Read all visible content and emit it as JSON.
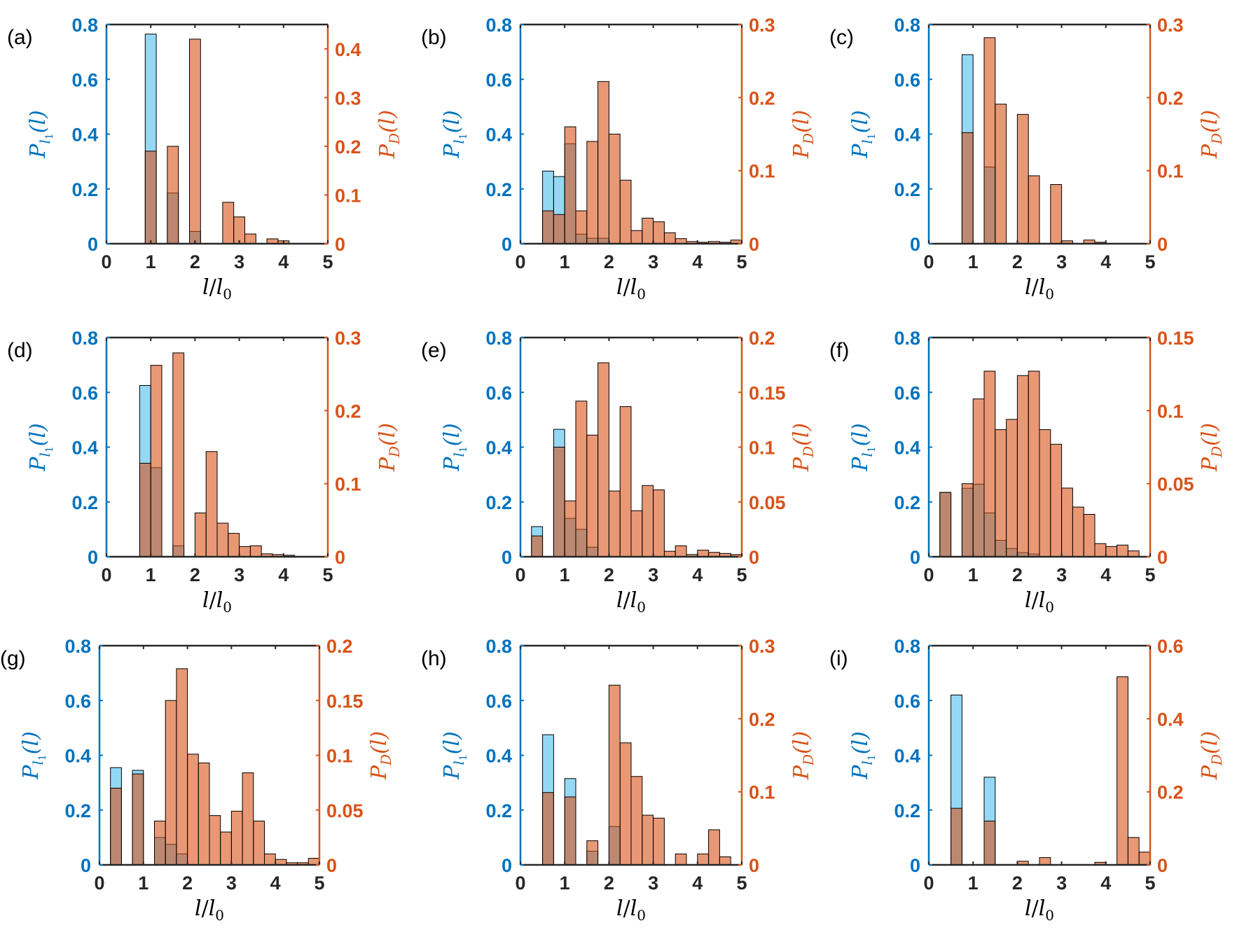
{
  "colors": {
    "left_axis": "#0072BD",
    "right_axis": "#D95319",
    "blue_fill": "#4DBEEE",
    "orange_fill": "#D95319",
    "axis_black": "#262626"
  },
  "common": {
    "xlabel": {
      "base": "l",
      "slash": "/",
      "base2": "l",
      "sub": "0"
    },
    "ylabel_left": {
      "P": "P",
      "sub": "l",
      "subsub": "1",
      "arg": "(l)"
    },
    "ylabel_right": {
      "P": "P",
      "sub": "D",
      "arg": "(l)"
    },
    "xticks": [
      "0",
      "1",
      "2",
      "3",
      "4",
      "5"
    ],
    "left_ticks": [
      "0",
      "0.2",
      "0.4",
      "0.6",
      "0.8"
    ]
  },
  "chart_data": [
    {
      "label": "(a)",
      "type": "bar",
      "xlim": [
        0,
        5
      ],
      "ylim_left": [
        0,
        0.8
      ],
      "ylim_right": [
        0,
        0.45
      ],
      "right_ticks": [
        "0",
        "0.1",
        "0.2",
        "0.3",
        "0.4"
      ],
      "right_values": [
        0,
        0.1,
        0.2,
        0.3,
        0.4
      ],
      "series": [
        {
          "name": "P_l1",
          "axis": "left",
          "bin_width": 0.25,
          "x": [
            1.0,
            1.5,
            2.0
          ],
          "values": [
            0.765,
            0.185,
            0.045
          ]
        },
        {
          "name": "P_D",
          "axis": "right",
          "bin_width": 0.25,
          "x": [
            1.0,
            1.5,
            2.0,
            2.75,
            3.0,
            3.25,
            3.75,
            4.0
          ],
          "values": [
            0.19,
            0.2,
            0.42,
            0.085,
            0.055,
            0.02,
            0.01,
            0.006
          ]
        }
      ]
    },
    {
      "label": "(b)",
      "type": "bar",
      "xlim": [
        0,
        5
      ],
      "ylim_left": [
        0,
        0.8
      ],
      "ylim_right": [
        0,
        0.3
      ],
      "right_ticks": [
        "0",
        "0.1",
        "0.2",
        "0.3"
      ],
      "right_values": [
        0,
        0.1,
        0.2,
        0.3
      ],
      "series": [
        {
          "name": "P_l1",
          "axis": "left",
          "bin_width": 0.25,
          "x": [
            0.625,
            0.875,
            1.125,
            1.375,
            1.625,
            1.875
          ],
          "values": [
            0.265,
            0.245,
            0.365,
            0.035,
            0.02,
            0.02
          ]
        },
        {
          "name": "P_D",
          "axis": "right",
          "bin_width": 0.25,
          "x": [
            0.625,
            0.875,
            1.125,
            1.375,
            1.625,
            1.875,
            2.125,
            2.375,
            2.625,
            2.875,
            3.125,
            3.375,
            3.625,
            3.875,
            4.125,
            4.375,
            4.625,
            4.875
          ],
          "values": [
            0.045,
            0.04,
            0.16,
            0.045,
            0.14,
            0.222,
            0.15,
            0.087,
            0.018,
            0.035,
            0.03,
            0.015,
            0.007,
            0.003,
            0.002,
            0.003,
            0.002,
            0.005
          ]
        }
      ]
    },
    {
      "label": "(c)",
      "type": "bar",
      "xlim": [
        0,
        5
      ],
      "ylim_left": [
        0,
        0.8
      ],
      "ylim_right": [
        0,
        0.3
      ],
      "right_ticks": [
        "0",
        "0.1",
        "0.2",
        "0.3"
      ],
      "right_values": [
        0,
        0.1,
        0.2,
        0.3
      ],
      "series": [
        {
          "name": "P_l1",
          "axis": "left",
          "bin_width": 0.25,
          "x": [
            0.875,
            1.375
          ],
          "values": [
            0.69,
            0.28
          ]
        },
        {
          "name": "P_D",
          "axis": "right",
          "bin_width": 0.25,
          "x": [
            0.875,
            1.375,
            1.625,
            2.125,
            2.375,
            2.875,
            3.125,
            3.625,
            3.875
          ],
          "values": [
            0.152,
            0.282,
            0.191,
            0.177,
            0.093,
            0.081,
            0.004,
            0.005,
            0.002
          ]
        }
      ]
    },
    {
      "label": "(d)",
      "type": "bar",
      "xlim": [
        0,
        5
      ],
      "ylim_left": [
        0,
        0.8
      ],
      "ylim_right": [
        0,
        0.3
      ],
      "right_ticks": [
        "0",
        "0.1",
        "0.2",
        "0.3"
      ],
      "right_values": [
        0,
        0.1,
        0.2,
        0.3
      ],
      "series": [
        {
          "name": "P_l1",
          "axis": "left",
          "bin_width": 0.25,
          "x": [
            0.875,
            1.125,
            1.625
          ],
          "values": [
            0.625,
            0.325,
            0.04
          ]
        },
        {
          "name": "P_D",
          "axis": "right",
          "bin_width": 0.25,
          "x": [
            0.875,
            1.125,
            1.625,
            2.125,
            2.375,
            2.625,
            2.875,
            3.125,
            3.375,
            3.625,
            3.875,
            4.125
          ],
          "values": [
            0.128,
            0.262,
            0.279,
            0.06,
            0.144,
            0.046,
            0.032,
            0.014,
            0.015,
            0.004,
            0.003,
            0.002
          ]
        }
      ]
    },
    {
      "label": "(e)",
      "type": "bar",
      "xlim": [
        0,
        5
      ],
      "ylim_left": [
        0,
        0.8
      ],
      "ylim_right": [
        0,
        0.2
      ],
      "right_ticks": [
        "0",
        "0.05",
        "0.1",
        "0.15",
        "0.2"
      ],
      "right_values": [
        0,
        0.05,
        0.1,
        0.15,
        0.2
      ],
      "series": [
        {
          "name": "P_l1",
          "axis": "left",
          "bin_width": 0.25,
          "x": [
            0.375,
            0.875,
            1.125,
            1.375,
            1.625
          ],
          "values": [
            0.11,
            0.465,
            0.14,
            0.1,
            0.035
          ]
        },
        {
          "name": "P_D",
          "axis": "right",
          "bin_width": 0.25,
          "x": [
            0.375,
            0.875,
            1.125,
            1.375,
            1.625,
            1.875,
            2.125,
            2.375,
            2.625,
            2.875,
            3.125,
            3.375,
            3.625,
            3.875,
            4.125,
            4.375,
            4.625,
            4.875
          ],
          "values": [
            0.019,
            0.1,
            0.051,
            0.142,
            0.111,
            0.177,
            0.06,
            0.137,
            0.042,
            0.065,
            0.061,
            0.005,
            0.01,
            0.002,
            0.006,
            0.004,
            0.003,
            0.002
          ]
        }
      ]
    },
    {
      "label": "(f)",
      "type": "bar",
      "xlim": [
        0,
        5
      ],
      "ylim_left": [
        0,
        0.8
      ],
      "ylim_right": [
        0,
        0.15
      ],
      "right_ticks": [
        "0",
        "0.05",
        "0.1",
        "0.15"
      ],
      "right_values": [
        0,
        0.05,
        0.1,
        0.15
      ],
      "series": [
        {
          "name": "P_l1",
          "axis": "left",
          "bin_width": 0.25,
          "x": [
            0.375,
            0.875,
            1.125,
            1.375,
            1.625,
            1.875,
            2.125,
            2.375
          ],
          "values": [
            0.235,
            0.25,
            0.265,
            0.16,
            0.06,
            0.03,
            0.015,
            0.01
          ]
        },
        {
          "name": "P_D",
          "axis": "right",
          "bin_width": 0.25,
          "x": [
            0.375,
            0.875,
            1.125,
            1.375,
            1.625,
            1.875,
            2.125,
            2.375,
            2.625,
            2.875,
            3.125,
            3.375,
            3.625,
            3.875,
            4.125,
            4.375,
            4.625
          ],
          "values": [
            0.044,
            0.05,
            0.108,
            0.127,
            0.087,
            0.094,
            0.124,
            0.127,
            0.087,
            0.077,
            0.047,
            0.034,
            0.029,
            0.009,
            0.007,
            0.008,
            0.004
          ]
        }
      ]
    },
    {
      "label": "(g)",
      "type": "bar",
      "xlim": [
        0,
        5
      ],
      "ylim_left": [
        0,
        0.8
      ],
      "ylim_right": [
        0,
        0.2
      ],
      "right_ticks": [
        "0",
        "0.05",
        "0.1",
        "0.15",
        "0.2"
      ],
      "right_values": [
        0,
        0.05,
        0.1,
        0.15,
        0.2
      ],
      "series": [
        {
          "name": "P_l1",
          "axis": "left",
          "bin_width": 0.25,
          "x": [
            0.375,
            0.875,
            1.375,
            1.625,
            1.875
          ],
          "values": [
            0.355,
            0.345,
            0.1,
            0.075,
            0.04
          ]
        },
        {
          "name": "P_D",
          "axis": "right",
          "bin_width": 0.25,
          "x": [
            0.375,
            0.875,
            1.375,
            1.625,
            1.875,
            2.125,
            2.375,
            2.625,
            2.875,
            3.125,
            3.375,
            3.625,
            3.875,
            4.125,
            4.375,
            4.625,
            4.875
          ],
          "values": [
            0.07,
            0.083,
            0.04,
            0.15,
            0.179,
            0.101,
            0.093,
            0.045,
            0.03,
            0.049,
            0.084,
            0.04,
            0.01,
            0.005,
            0.002,
            0.002,
            0.006
          ]
        }
      ]
    },
    {
      "label": "(h)",
      "type": "bar",
      "xlim": [
        0,
        5
      ],
      "ylim_left": [
        0,
        0.8
      ],
      "ylim_right": [
        0,
        0.3
      ],
      "right_ticks": [
        "0",
        "0.1",
        "0.2",
        "0.3"
      ],
      "right_values": [
        0,
        0.1,
        0.2,
        0.3
      ],
      "series": [
        {
          "name": "P_l1",
          "axis": "left",
          "bin_width": 0.25,
          "x": [
            0.625,
            1.125,
            1.625,
            2.125
          ],
          "values": [
            0.475,
            0.315,
            0.05,
            0.14
          ]
        },
        {
          "name": "P_D",
          "axis": "right",
          "bin_width": 0.25,
          "x": [
            0.625,
            1.125,
            1.625,
            2.125,
            2.375,
            2.625,
            2.875,
            3.125,
            3.625,
            4.125,
            4.375,
            4.625
          ],
          "values": [
            0.099,
            0.093,
            0.033,
            0.246,
            0.167,
            0.121,
            0.068,
            0.064,
            0.015,
            0.015,
            0.048,
            0.011
          ]
        }
      ]
    },
    {
      "label": "(i)",
      "type": "bar",
      "xlim": [
        0,
        5
      ],
      "ylim_left": [
        0,
        0.8
      ],
      "ylim_right": [
        0,
        0.6
      ],
      "right_ticks": [
        "0",
        "0.2",
        "0.4",
        "0.6"
      ],
      "right_values": [
        0,
        0.2,
        0.4,
        0.6
      ],
      "series": [
        {
          "name": "P_l1",
          "axis": "left",
          "bin_width": 0.25,
          "x": [
            0.625,
            1.375
          ],
          "values": [
            0.62,
            0.32
          ]
        },
        {
          "name": "P_D",
          "axis": "right",
          "bin_width": 0.25,
          "x": [
            0.625,
            1.375,
            2.125,
            2.625,
            3.875,
            4.375,
            4.625,
            4.875
          ],
          "values": [
            0.155,
            0.12,
            0.01,
            0.02,
            0.007,
            0.515,
            0.075,
            0.035
          ]
        }
      ]
    }
  ]
}
